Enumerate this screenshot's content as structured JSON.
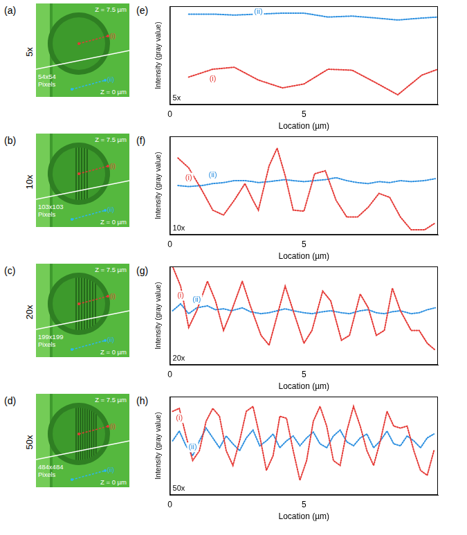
{
  "images": [
    {
      "letter": "(a)",
      "magnification": "5x",
      "z_top": "Z = 7.5 µm",
      "z_bottom": "Z = 0 µm",
      "pixels": "54x54 Pixels",
      "line_labels": [
        "(i)",
        "(ii)"
      ]
    },
    {
      "letter": "(b)",
      "magnification": "10x",
      "z_top": "Z = 7.5 µm",
      "z_bottom": "Z = 0 µm",
      "pixels": "103x103 Pixels",
      "line_labels": [
        "(i)",
        "(ii)"
      ]
    },
    {
      "letter": "(c)",
      "magnification": "20x",
      "z_top": "Z = 7.5 µm",
      "z_bottom": "Z = 0 µm",
      "pixels": "199x199 Pixels",
      "line_labels": [
        "(i)",
        "(ii)"
      ]
    },
    {
      "letter": "(d)",
      "magnification": "50x",
      "z_top": "Z = 7.5 µm",
      "z_bottom": "Z = 0 µm",
      "pixels": "484x484 Pixels",
      "line_labels": [
        "(i)",
        "(ii)"
      ]
    }
  ],
  "chart_data": [
    {
      "type": "line",
      "letter": "(e)",
      "annotation": "5x",
      "x_label": "Location (µm)",
      "y_label": "Intensity (gray value)",
      "xlim": [
        0,
        10
      ],
      "xticks": [
        0,
        5
      ],
      "ylim": [
        0,
        100
      ],
      "tick_labels": "x",
      "grid": false,
      "x": [
        0.7,
        1.6,
        2.4,
        3.3,
        4.2,
        5.0,
        5.9,
        6.8,
        7.7,
        8.5,
        9.4,
        10
      ],
      "series": [
        {
          "name": "(i)",
          "color": "#e53935",
          "line_style": "dotted",
          "values": [
            28,
            36,
            38,
            25,
            17,
            21,
            36,
            35,
            22,
            10,
            30,
            36
          ]
        },
        {
          "name": "(ii)",
          "color": "#2b8fe0",
          "line_style": "dotted",
          "values": [
            92,
            92,
            91,
            92,
            93,
            93,
            89,
            90,
            88,
            86,
            88,
            89
          ]
        }
      ]
    },
    {
      "type": "line",
      "letter": "(f)",
      "annotation": "10x",
      "x_label": "Location (µm)",
      "y_label": "Intensity (gray value)",
      "xlim": [
        0,
        10
      ],
      "xticks": [
        0,
        5
      ],
      "ylim": [
        0,
        100
      ],
      "tick_labels": "x",
      "grid": false,
      "x": [
        0.3,
        0.7,
        1.2,
        1.6,
        2.0,
        2.4,
        2.8,
        3.1,
        3.3,
        3.7,
        4.0,
        4.3,
        4.6,
        5.0,
        5.4,
        5.8,
        6.2,
        6.6,
        7.0,
        7.4,
        7.8,
        8.2,
        8.6,
        9.0,
        9.5,
        9.9
      ],
      "series": [
        {
          "name": "(i)",
          "color": "#e53935",
          "line_style": "dotted",
          "values": [
            78,
            68,
            45,
            25,
            20,
            35,
            52,
            35,
            25,
            70,
            88,
            60,
            25,
            24,
            62,
            65,
            35,
            18,
            18,
            28,
            42,
            38,
            18,
            5,
            5,
            12
          ]
        },
        {
          "name": "(ii)",
          "color": "#2b8fe0",
          "line_style": "dotted",
          "values": [
            50,
            49,
            50,
            52,
            53,
            55,
            55,
            54,
            53,
            54,
            55,
            56,
            55,
            54,
            55,
            56,
            58,
            55,
            53,
            52,
            54,
            53,
            55,
            54,
            55,
            57
          ]
        }
      ]
    },
    {
      "type": "line",
      "letter": "(g)",
      "annotation": "20x",
      "x_label": "Location (µm)",
      "y_label": "Intensity (gray value)",
      "xlim": [
        0,
        10
      ],
      "xticks": [
        0,
        5
      ],
      "ylim": [
        0,
        100
      ],
      "tick_labels": "x",
      "grid": false,
      "x": [
        0.1,
        0.4,
        0.7,
        1.0,
        1.4,
        1.7,
        2.0,
        2.3,
        2.7,
        3.0,
        3.4,
        3.7,
        4.0,
        4.3,
        4.6,
        5.0,
        5.3,
        5.7,
        6.0,
        6.4,
        6.7,
        7.1,
        7.4,
        7.7,
        8.0,
        8.3,
        8.6,
        9.0,
        9.3,
        9.6,
        9.9
      ],
      "series": [
        {
          "name": "(i)",
          "color": "#e53935",
          "line_style": "dotted",
          "values": [
            100,
            80,
            38,
            55,
            85,
            65,
            35,
            55,
            85,
            60,
            30,
            20,
            50,
            80,
            55,
            22,
            35,
            75,
            65,
            25,
            30,
            72,
            58,
            30,
            35,
            78,
            55,
            35,
            35,
            22,
            15
          ]
        },
        {
          "name": "(ii)",
          "color": "#2b8fe0",
          "line_style": "dotted",
          "values": [
            55,
            62,
            52,
            58,
            60,
            56,
            57,
            55,
            58,
            54,
            52,
            53,
            55,
            57,
            55,
            53,
            52,
            54,
            55,
            53,
            52,
            55,
            56,
            53,
            52,
            54,
            55,
            52,
            53,
            56,
            58
          ]
        }
      ]
    },
    {
      "type": "line",
      "letter": "(h)",
      "annotation": "50x",
      "x_label": "Location (µm)",
      "y_label": "Intensity (gray value)",
      "xlim": [
        0,
        10
      ],
      "xticks": [
        0,
        5
      ],
      "ylim": [
        0,
        100
      ],
      "tick_labels": "x",
      "grid": false,
      "x": [
        0.1,
        0.35,
        0.6,
        0.85,
        1.1,
        1.35,
        1.6,
        1.85,
        2.1,
        2.35,
        2.6,
        2.85,
        3.1,
        3.35,
        3.6,
        3.85,
        4.1,
        4.35,
        4.6,
        4.85,
        5.1,
        5.35,
        5.6,
        5.85,
        6.1,
        6.35,
        6.6,
        6.85,
        7.1,
        7.35,
        7.6,
        7.85,
        8.1,
        8.35,
        8.6,
        8.85,
        9.1,
        9.35,
        9.6,
        9.85
      ],
      "series": [
        {
          "name": "(i)",
          "color": "#e53935",
          "line_style": "dotted",
          "values": [
            85,
            88,
            60,
            35,
            45,
            75,
            88,
            80,
            45,
            30,
            55,
            85,
            90,
            60,
            25,
            40,
            80,
            78,
            45,
            15,
            35,
            75,
            90,
            70,
            35,
            30,
            65,
            90,
            70,
            45,
            30,
            55,
            85,
            70,
            68,
            70,
            45,
            25,
            20,
            45
          ]
        },
        {
          "name": "(ii)",
          "color": "#2b8fe0",
          "line_style": "dotted",
          "values": [
            55,
            65,
            50,
            40,
            55,
            68,
            58,
            48,
            60,
            52,
            45,
            58,
            66,
            50,
            55,
            62,
            48,
            55,
            60,
            50,
            58,
            64,
            52,
            48,
            60,
            66,
            54,
            50,
            58,
            62,
            48,
            55,
            65,
            52,
            50,
            60,
            55,
            48,
            58,
            62
          ]
        }
      ]
    }
  ]
}
